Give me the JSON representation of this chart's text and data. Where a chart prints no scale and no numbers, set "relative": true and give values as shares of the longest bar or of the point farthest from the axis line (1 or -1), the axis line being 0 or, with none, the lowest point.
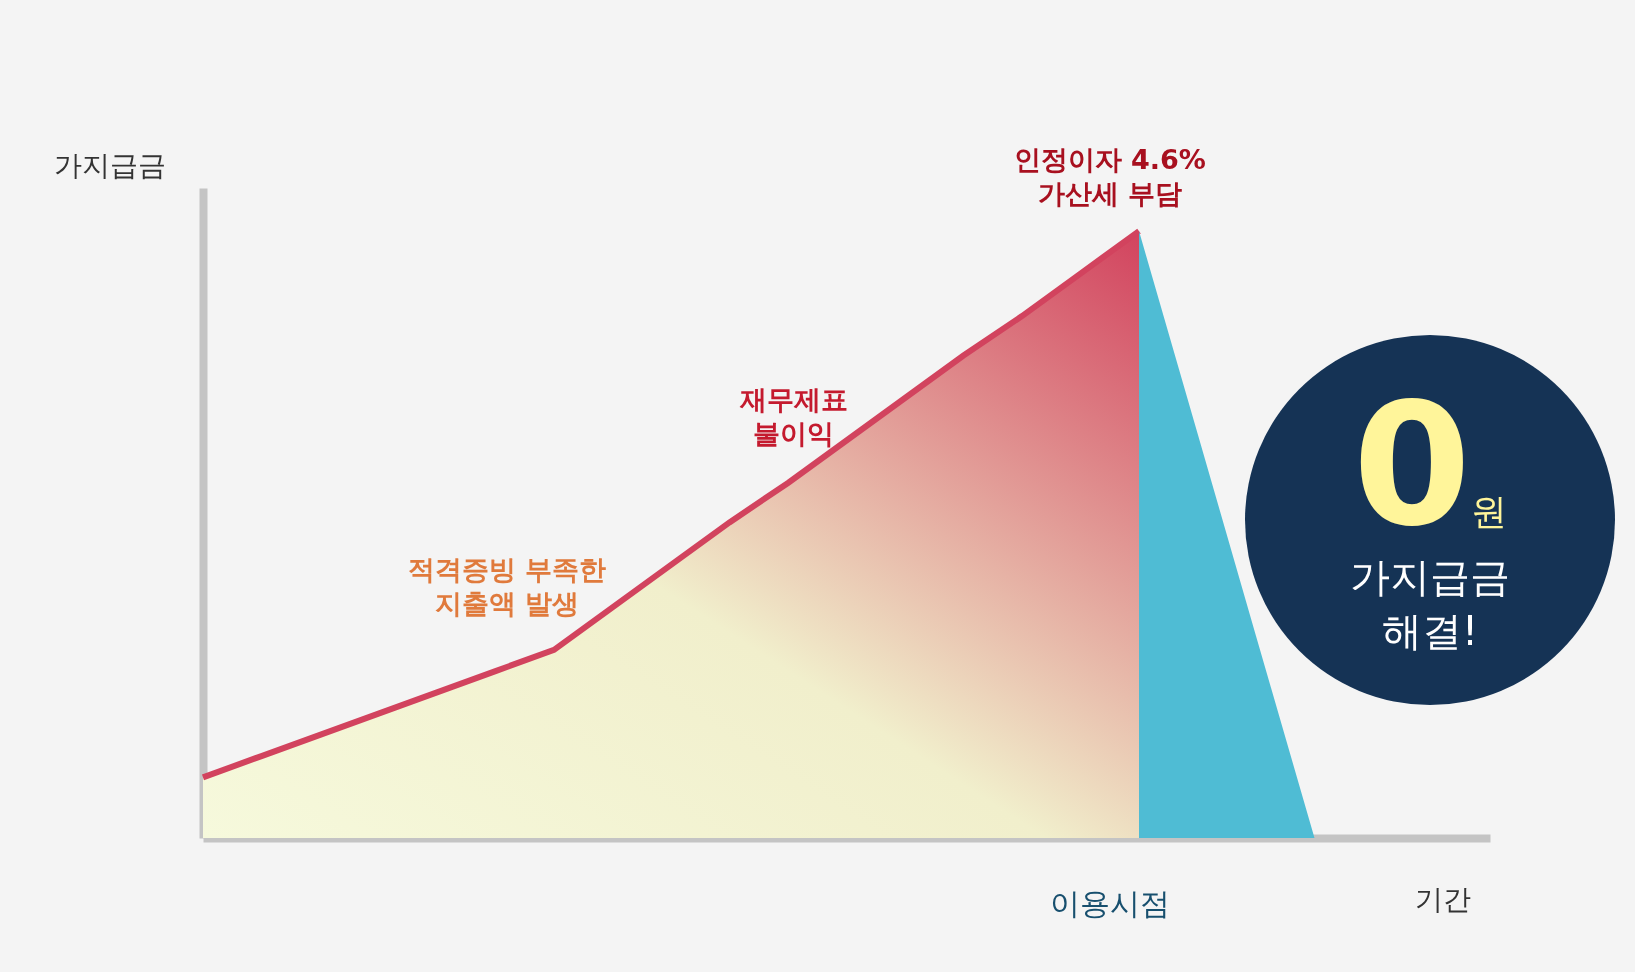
{
  "chart_data": {
    "type": "area",
    "relative": true,
    "ylabel": "가지급금",
    "xlabel": "기간",
    "grid": false,
    "categories": [
      null,
      null,
      null,
      null,
      null,
      null,
      null,
      null,
      null,
      null,
      null,
      null,
      null,
      null,
      null,
      null,
      null,
      null,
      null,
      null,
      null,
      null,
      null
    ],
    "series": [
      {
        "color": "#d2435e",
        "values": [
          0.1,
          0.135,
          0.17,
          0.205,
          0.24,
          0.275,
          0.31,
          0.38,
          0.45,
          0.52,
          0.585,
          0.655,
          0.725,
          0.795,
          0.86,
          0.93,
          1.0,
          null,
          null,
          null,
          null,
          null,
          null
        ]
      },
      {
        "color": "#4fbcd4",
        "values": [
          null,
          null,
          null,
          null,
          null,
          null,
          null,
          null,
          null,
          null,
          null,
          null,
          null,
          null,
          null,
          null,
          1.0,
          0.667,
          0.333,
          0.0,
          null,
          null,
          null
        ]
      }
    ],
    "annotations": [
      "적격증빙 부족한\n지출액 발생",
      "재무제표\n불이익",
      "인정이자 4.6%\n가산세 부담",
      "이용시점",
      "0원",
      "가지급금\n해결!"
    ]
  }
}
